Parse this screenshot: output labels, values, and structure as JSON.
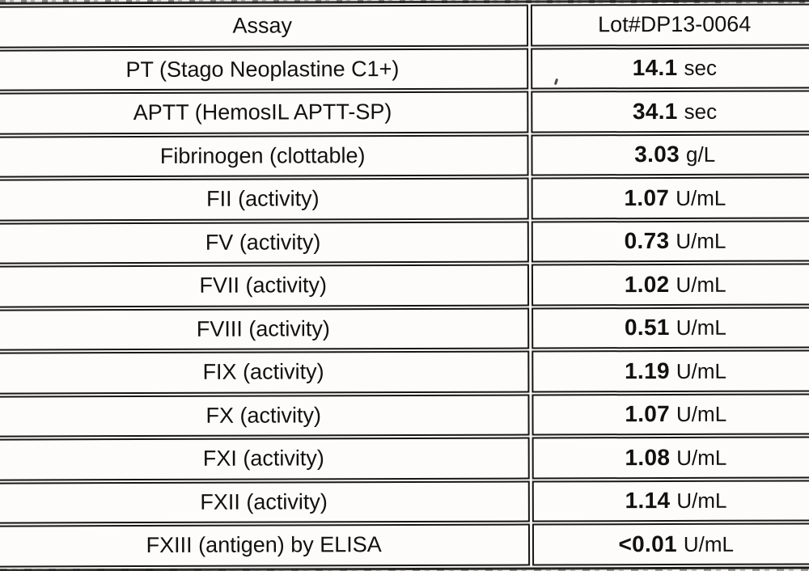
{
  "document": {
    "kind": "scanned-assay-results-table"
  },
  "colors": {
    "ink": "#171614",
    "paper": "#fcfbf9"
  },
  "table": {
    "header": {
      "assay": "Assay",
      "lot": "Lot#DP13-0064"
    },
    "rows": [
      {
        "assay": "PT (Stago Neoplastine C1+)",
        "value": "14.1",
        "unit": "sec"
      },
      {
        "assay": "APTT (HemosIL APTT-SP)",
        "value": "34.1",
        "unit": "sec"
      },
      {
        "assay": "Fibrinogen (clottable)",
        "value": "3.03",
        "unit": "g/L"
      },
      {
        "assay": "FII (activity)",
        "value": "1.07",
        "unit": "U/mL"
      },
      {
        "assay": "FV (activity)",
        "value": "0.73",
        "unit": "U/mL"
      },
      {
        "assay": "FVII (activity)",
        "value": "1.02",
        "unit": "U/mL"
      },
      {
        "assay": "FVIII (activity)",
        "value": "0.51",
        "unit": "U/mL"
      },
      {
        "assay": "FIX (activity)",
        "value": "1.19",
        "unit": "U/mL"
      },
      {
        "assay": "FX (activity)",
        "value": "1.07",
        "unit": "U/mL"
      },
      {
        "assay": "FXI (activity)",
        "value": "1.08",
        "unit": "U/mL"
      },
      {
        "assay": "FXII (activity)",
        "value": "1.14",
        "unit": "U/mL"
      },
      {
        "assay": "FXIII (antigen) by ELISA",
        "value": "<0.01",
        "unit": "U/mL"
      }
    ]
  }
}
